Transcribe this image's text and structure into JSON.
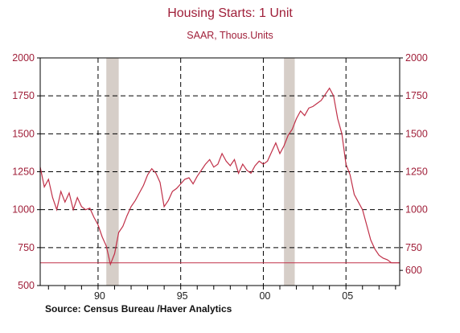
{
  "chart_data": {
    "type": "line",
    "title": "Housing Starts: 1 Unit",
    "subtitle": "SAAR, Thous.Units",
    "source": "Source:  Census Bureau /Haver Analytics",
    "ylim": [
      500,
      2000
    ],
    "yticks": [
      500,
      750,
      1000,
      1250,
      1500,
      1750,
      2000
    ],
    "ytick_labels": [
      "500",
      "750",
      "1000",
      "1250",
      "1500",
      "1750",
      "2000"
    ],
    "right_yticks": [
      600,
      750,
      1000,
      1250,
      1500,
      1750,
      2000
    ],
    "right_ytick_labels": [
      "600",
      "750",
      "1000",
      "1250",
      "1500",
      "1750",
      "2000"
    ],
    "xlim": [
      1986.5,
      2008.25
    ],
    "xticks": [
      1990,
      1995,
      2000,
      2005
    ],
    "xtick_labels": [
      "90",
      "95",
      "00",
      "05"
    ],
    "grid": "dashed",
    "reference_line": 650,
    "recessions": [
      [
        1990.5,
        1991.25
      ],
      [
        2001.25,
        2001.9
      ]
    ],
    "colors": {
      "line": "#c03048",
      "text": "#a0203a",
      "recession": "#d6cec8",
      "axis": "#000000"
    },
    "series": [
      {
        "x": [
          1986.5,
          1986.75,
          1987.0,
          1987.25,
          1987.5,
          1987.75,
          1988.0,
          1988.25,
          1988.5,
          1988.75,
          1989.0,
          1989.25,
          1989.5,
          1989.75,
          1990.0,
          1990.25,
          1990.5,
          1990.75,
          1991.0,
          1991.25,
          1991.5,
          1991.75,
          1992.0,
          1992.25,
          1992.5,
          1992.75,
          1993.0,
          1993.25,
          1993.5,
          1993.75,
          1994.0,
          1994.25,
          1994.5,
          1994.75,
          1995.0,
          1995.25,
          1995.5,
          1995.75,
          1996.0,
          1996.25,
          1996.5,
          1996.75,
          1997.0,
          1997.25,
          1997.5,
          1997.75,
          1998.0,
          1998.25,
          1998.5,
          1998.75,
          1999.0,
          1999.25,
          1999.5,
          1999.75,
          2000.0,
          2000.25,
          2000.5,
          2000.75,
          2001.0,
          2001.25,
          2001.5,
          2001.75,
          2002.0,
          2002.25,
          2002.5,
          2002.75,
          2003.0,
          2003.25,
          2003.5,
          2003.75,
          2004.0,
          2004.25,
          2004.5,
          2004.75,
          2005.0,
          2005.25,
          2005.5,
          2005.75,
          2006.0,
          2006.25,
          2006.5,
          2006.75,
          2007.0,
          2007.25,
          2007.5,
          2007.75,
          2008.0,
          2008.25
        ],
        "values": [
          1280,
          1150,
          1200,
          1080,
          1000,
          1120,
          1050,
          1110,
          1000,
          1080,
          1020,
          1000,
          1010,
          950,
          900,
          820,
          760,
          640,
          710,
          850,
          890,
          960,
          1020,
          1060,
          1110,
          1160,
          1230,
          1270,
          1240,
          1180,
          1020,
          1060,
          1120,
          1140,
          1170,
          1200,
          1210,
          1170,
          1220,
          1260,
          1300,
          1330,
          1280,
          1300,
          1370,
          1320,
          1290,
          1330,
          1240,
          1300,
          1260,
          1240,
          1290,
          1320,
          1300,
          1320,
          1380,
          1440,
          1370,
          1420,
          1490,
          1530,
          1600,
          1650,
          1620,
          1670,
          1680,
          1700,
          1720,
          1760,
          1800,
          1750,
          1600,
          1500,
          1300,
          1230,
          1100,
          1050,
          1000,
          900,
          800,
          740,
          700,
          680,
          670,
          650,
          650,
          650
        ]
      }
    ]
  }
}
